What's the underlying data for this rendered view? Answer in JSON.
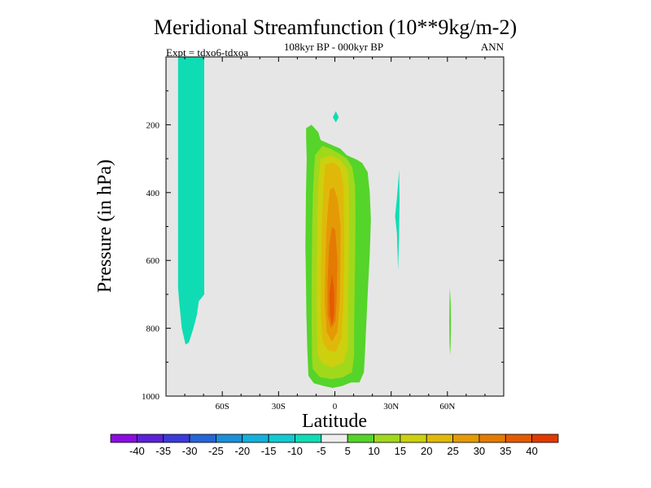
{
  "chart_data": {
    "type": "contour",
    "title": "Meridional Streamfunction (10**9kg/m-2)",
    "subtitle": "108kyr BP - 000kyr BP",
    "left_label": "Expt = tdxo6-tdxoa",
    "right_label": "ANN",
    "xlabel": "Latitude",
    "ylabel": "Pressure (in hPa)",
    "xlim": [
      -90,
      90
    ],
    "ylim": [
      1000,
      0
    ],
    "x_ticks": [
      {
        "value": -60,
        "label": "60S"
      },
      {
        "value": -30,
        "label": "30S"
      },
      {
        "value": 0,
        "label": "0"
      },
      {
        "value": 30,
        "label": "30N"
      },
      {
        "value": 60,
        "label": "60N"
      }
    ],
    "y_ticks": [
      {
        "value": 200,
        "label": "200"
      },
      {
        "value": 400,
        "label": "400"
      },
      {
        "value": 600,
        "label": "600"
      },
      {
        "value": 800,
        "label": "800"
      },
      {
        "value": 1000,
        "label": "1000"
      }
    ],
    "background_color": "#e6e6e6",
    "colorbar": {
      "labels": [
        "-40",
        "-35",
        "-30",
        "-25",
        "-20",
        "-15",
        "-10",
        "-5",
        "5",
        "10",
        "15",
        "20",
        "25",
        "30",
        "35",
        "40"
      ],
      "colors": [
        "#8a0de0",
        "#5a22d6",
        "#3a3ad8",
        "#2565d6",
        "#1a8fd8",
        "#14b0dc",
        "#12c9d2",
        "#10dcb4",
        "#eeeeee",
        "#55d42a",
        "#a0d81c",
        "#ccd00e",
        "#e0b80a",
        "#e49a06",
        "#e47a04",
        "#e45a02",
        "#e03a00"
      ]
    },
    "regions": [
      {
        "name": "sh-negative-cell",
        "level": -10,
        "color": "#10dcb4",
        "points": [
          [
            -83.6,
            0
          ],
          [
            -69.6,
            0
          ],
          [
            -69.6,
            700
          ],
          [
            -71.0,
            710
          ],
          [
            -72.5,
            720
          ],
          [
            -73.5,
            760
          ],
          [
            -75.4,
            800
          ],
          [
            -77.8,
            842
          ],
          [
            -79.6,
            848
          ],
          [
            -81.6,
            800
          ],
          [
            -83.0,
            720
          ],
          [
            -83.6,
            680
          ]
        ]
      },
      {
        "name": "upper-negative-blob",
        "level": -10,
        "color": "#10dcb4",
        "points": [
          [
            0.5,
            160
          ],
          [
            2.1,
            178
          ],
          [
            0.5,
            193
          ],
          [
            -1.1,
            178
          ]
        ]
      },
      {
        "name": "nh-negative-sliver",
        "level": -10,
        "color": "#10dcb4",
        "points": [
          [
            33.5,
            390
          ],
          [
            34.2,
            333
          ],
          [
            34.5,
            420
          ],
          [
            34.2,
            530
          ],
          [
            33.7,
            628
          ],
          [
            33.1,
            520
          ],
          [
            32.1,
            470
          ],
          [
            33.0,
            420
          ]
        ]
      },
      {
        "name": "main-cell-5",
        "level": 5,
        "color": "#55d42a",
        "points": [
          [
            -15.3,
            210
          ],
          [
            -12.5,
            200
          ],
          [
            -8.8,
            222
          ],
          [
            -7.6,
            245
          ],
          [
            -1.5,
            260
          ],
          [
            2.8,
            270
          ],
          [
            6.4,
            290
          ],
          [
            11.8,
            303
          ],
          [
            14.6,
            313
          ],
          [
            17.5,
            340
          ],
          [
            18.6,
            400
          ],
          [
            19.2,
            480
          ],
          [
            18.6,
            580
          ],
          [
            17.5,
            700
          ],
          [
            17.0,
            760
          ],
          [
            16.5,
            820
          ],
          [
            16.1,
            870
          ],
          [
            15.5,
            930
          ],
          [
            13.1,
            960
          ],
          [
            8.5,
            960
          ],
          [
            4.0,
            970
          ],
          [
            -1.2,
            976
          ],
          [
            -6.0,
            970
          ],
          [
            -11.2,
            962
          ],
          [
            -14.1,
            940
          ],
          [
            -14.7,
            860
          ],
          [
            -15.2,
            760
          ],
          [
            -15.4,
            660
          ],
          [
            -15.7,
            560
          ],
          [
            -15.4,
            400
          ],
          [
            -15.0,
            300
          ],
          [
            -15.3,
            240
          ]
        ]
      },
      {
        "name": "main-cell-10",
        "level": 10,
        "color": "#a0d81c",
        "points": [
          [
            -10.6,
            290
          ],
          [
            -6.6,
            262
          ],
          [
            -2.6,
            270
          ],
          [
            2.3,
            285
          ],
          [
            6.4,
            300
          ],
          [
            9.3,
            325
          ],
          [
            10.8,
            380
          ],
          [
            11.0,
            480
          ],
          [
            10.8,
            600
          ],
          [
            10.5,
            700
          ],
          [
            10.3,
            800
          ],
          [
            10.3,
            880
          ],
          [
            9.1,
            930
          ],
          [
            4.0,
            945
          ],
          [
            -2.0,
            950
          ],
          [
            -8.0,
            944
          ],
          [
            -11.8,
            920
          ],
          [
            -12.2,
            880
          ],
          [
            -12.4,
            780
          ],
          [
            -12.4,
            660
          ],
          [
            -12.1,
            500
          ],
          [
            -11.6,
            380
          ]
        ]
      },
      {
        "name": "main-cell-15",
        "level": 15,
        "color": "#ccd00e",
        "points": [
          [
            -7.6,
            300
          ],
          [
            -2.1,
            290
          ],
          [
            3.4,
            305
          ],
          [
            7.0,
            335
          ],
          [
            7.6,
            400
          ],
          [
            7.6,
            500
          ],
          [
            7.3,
            650
          ],
          [
            7.0,
            780
          ],
          [
            7.0,
            860
          ],
          [
            4.6,
            902
          ],
          [
            -1.2,
            915
          ],
          [
            -6.1,
            906
          ],
          [
            -9.1,
            880
          ],
          [
            -9.6,
            800
          ],
          [
            -9.8,
            650
          ],
          [
            -9.4,
            480
          ],
          [
            -8.7,
            360
          ]
        ]
      },
      {
        "name": "main-cell-20",
        "level": 20,
        "color": "#e0b80a",
        "points": [
          [
            -5.1,
            318
          ],
          [
            -0.6,
            310
          ],
          [
            2.9,
            330
          ],
          [
            4.6,
            380
          ],
          [
            4.9,
            480
          ],
          [
            4.9,
            600
          ],
          [
            4.6,
            720
          ],
          [
            3.5,
            830
          ],
          [
            0.5,
            870
          ],
          [
            -3.6,
            865
          ],
          [
            -6.6,
            840
          ],
          [
            -7.4,
            760
          ],
          [
            -7.4,
            620
          ],
          [
            -6.8,
            480
          ],
          [
            -6.0,
            380
          ]
        ]
      },
      {
        "name": "main-cell-25",
        "level": 25,
        "color": "#e49a06",
        "points": [
          [
            -2.6,
            390
          ],
          [
            -0.6,
            385
          ],
          [
            1.5,
            420
          ],
          [
            3.1,
            500
          ],
          [
            2.9,
            600
          ],
          [
            2.6,
            720
          ],
          [
            1.4,
            810
          ],
          [
            -1.5,
            840
          ],
          [
            -4.4,
            810
          ],
          [
            -5.4,
            720
          ],
          [
            -5.1,
            620
          ],
          [
            -4.6,
            520
          ],
          [
            -3.6,
            440
          ]
        ]
      },
      {
        "name": "main-cell-30",
        "level": 30,
        "color": "#e47a04",
        "points": [
          [
            -1.5,
            500
          ],
          [
            0.2,
            510
          ],
          [
            1.4,
            600
          ],
          [
            0.9,
            720
          ],
          [
            0.2,
            780
          ],
          [
            -2.1,
            800
          ],
          [
            -3.9,
            760
          ],
          [
            -3.9,
            660
          ],
          [
            -3.1,
            560
          ]
        ]
      },
      {
        "name": "main-cell-35",
        "level": 35,
        "color": "#e45a02",
        "points": [
          [
            -1.5,
            640
          ],
          [
            -0.4,
            690
          ],
          [
            -0.4,
            760
          ],
          [
            -1.5,
            790
          ],
          [
            -2.6,
            760
          ],
          [
            -2.9,
            700
          ]
        ]
      },
      {
        "name": "nh60-positive-sliver",
        "level": 5,
        "color": "#55d42a",
        "points": [
          [
            61.3,
            680
          ],
          [
            61.7,
            720
          ],
          [
            61.9,
            780
          ],
          [
            61.7,
            850
          ],
          [
            61.4,
            880
          ],
          [
            61.1,
            840
          ],
          [
            61.0,
            780
          ],
          [
            61.1,
            720
          ]
        ]
      }
    ]
  }
}
